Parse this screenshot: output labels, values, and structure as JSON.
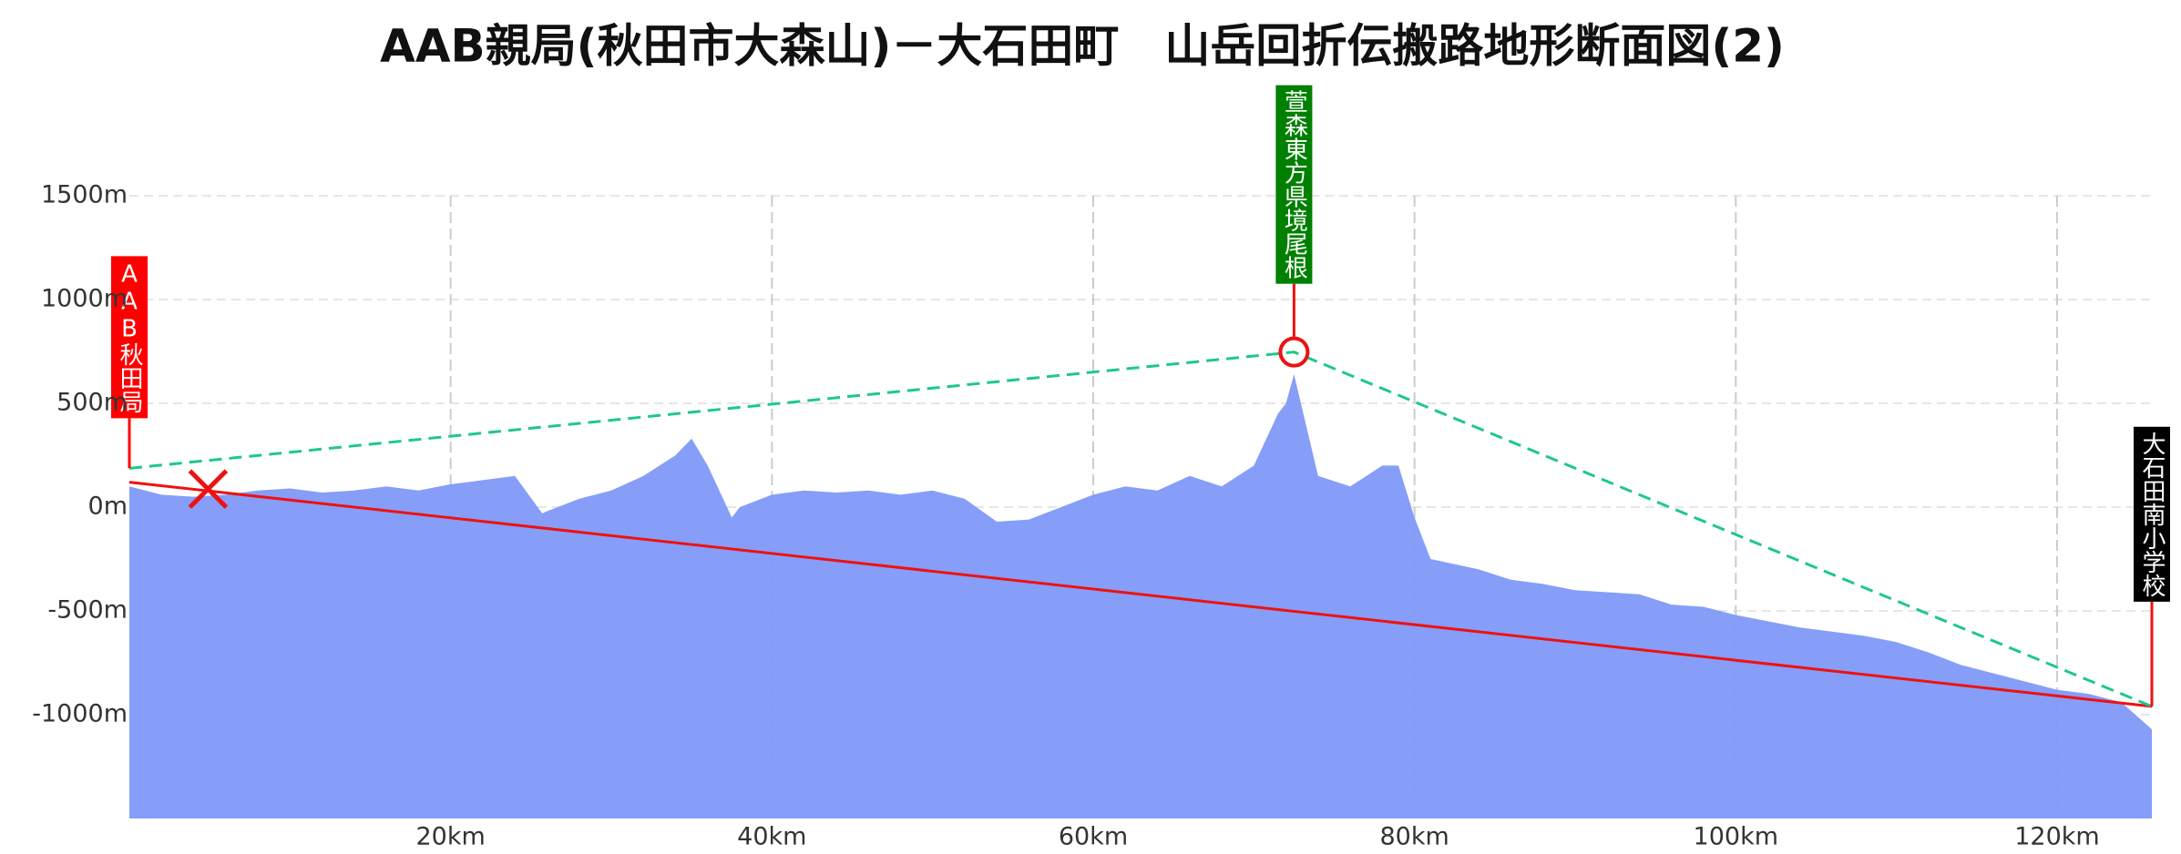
{
  "chart_data": {
    "type": "area",
    "title": "AAB親局(秋田市大森山)－大石田町　山岳回折伝搬路地形断面図(2)",
    "x": [
      0,
      2,
      4,
      6,
      8,
      10,
      12,
      14,
      16,
      18,
      20,
      22,
      24,
      25.7,
      26,
      28,
      30,
      32,
      34,
      35,
      36,
      37.5,
      38,
      40,
      42,
      44,
      46,
      48,
      50,
      52,
      54,
      56,
      58,
      60,
      62,
      64,
      66,
      68,
      70,
      71.5,
      72,
      72.5,
      74,
      76,
      78,
      79,
      80,
      81,
      84,
      86,
      88,
      90,
      94,
      96,
      98,
      100,
      104,
      106,
      108,
      110,
      112,
      114,
      116,
      118,
      120,
      122,
      124,
      125.9
    ],
    "values": [
      100,
      60,
      50,
      60,
      80,
      90,
      70,
      80,
      100,
      80,
      110,
      130,
      150,
      -30,
      -20,
      40,
      80,
      150,
      250,
      330,
      200,
      -50,
      0,
      60,
      80,
      70,
      80,
      60,
      80,
      40,
      -70,
      -60,
      0,
      60,
      100,
      80,
      150,
      100,
      200,
      450,
      500,
      640,
      150,
      100,
      200,
      200,
      -50,
      -250,
      -300,
      -350,
      -370,
      -400,
      -420,
      -470,
      -480,
      -520,
      -580,
      -600,
      -620,
      -650,
      -700,
      -760,
      -800,
      -840,
      -880,
      -900,
      -940,
      -1070
    ],
    "color": "#7f99f8",
    "xlim": [
      0,
      125.9
    ],
    "ylim": [
      -1500,
      1500
    ],
    "xticks": [
      {
        "value": 20,
        "label": "20km"
      },
      {
        "value": 40,
        "label": "40km"
      },
      {
        "value": 60,
        "label": "60km"
      },
      {
        "value": 80,
        "label": "80km"
      },
      {
        "value": 100,
        "label": "100km"
      },
      {
        "value": 120,
        "label": "120km"
      }
    ],
    "yticks": [
      {
        "value": 1500,
        "label": "1500m"
      },
      {
        "value": 1000,
        "label": "1000m"
      },
      {
        "value": 500,
        "label": "500m"
      },
      {
        "value": 0,
        "label": "0m"
      },
      {
        "value": -500,
        "label": "-500m"
      },
      {
        "value": -1000,
        "label": "-1000m"
      }
    ],
    "grid": true,
    "direct_line": {
      "x": [
        0,
        125.9
      ],
      "values": [
        120,
        -960
      ],
      "color": "#ee1111"
    },
    "relay_line": {
      "x": [
        0,
        72.5,
        125.9
      ],
      "values": [
        187,
        747,
        -960
      ],
      "color": "#1ec88a"
    },
    "blocked": {
      "x": 4.9,
      "value": 87,
      "color": "#ee1111"
    },
    "stations": [
      {
        "label": "AAB秋田局",
        "x": 0,
        "value": 187,
        "color": "#ff0000"
      },
      {
        "label": "萱森東方県境尾根",
        "x": 72.5,
        "value": 747,
        "color": "#008000"
      },
      {
        "label": "大石田南小学校",
        "x": 125.9,
        "value": -960,
        "color": "#000000"
      }
    ]
  }
}
